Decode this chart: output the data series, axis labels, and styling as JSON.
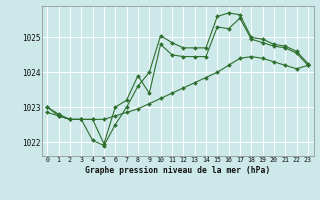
{
  "title": "Graphe pression niveau de la mer (hPa)",
  "bg_color": "#cce8e8",
  "grid_color": "#ffffff",
  "line_color": "#2d6e2d",
  "marker_color": "#2d6e2d",
  "xlim": [
    -0.5,
    23.5
  ],
  "ylim": [
    1021.6,
    1025.9
  ],
  "yticks": [
    1022,
    1023,
    1024,
    1025
  ],
  "xticks": [
    0,
    1,
    2,
    3,
    4,
    5,
    6,
    7,
    8,
    9,
    10,
    11,
    12,
    13,
    14,
    15,
    16,
    17,
    18,
    19,
    20,
    21,
    22,
    23
  ],
  "series": [
    {
      "x": [
        0,
        1,
        2,
        3,
        4,
        5,
        6,
        7,
        8,
        9,
        10,
        11,
        12,
        13,
        14,
        15,
        16,
        17,
        18,
        19,
        20,
        21,
        22,
        23
      ],
      "y": [
        1022.85,
        1022.75,
        1022.65,
        1022.65,
        1022.65,
        1022.65,
        1022.75,
        1022.85,
        1022.95,
        1023.1,
        1023.25,
        1023.4,
        1023.55,
        1023.7,
        1023.85,
        1024.0,
        1024.2,
        1024.4,
        1024.45,
        1024.4,
        1024.3,
        1024.2,
        1024.1,
        1024.2
      ]
    },
    {
      "x": [
        0,
        1,
        2,
        3,
        4,
        5,
        6,
        7,
        8,
        9,
        10,
        11,
        12,
        13,
        14,
        15,
        16,
        17,
        18,
        19,
        20,
        21,
        22,
        23
      ],
      "y": [
        1023.0,
        1022.8,
        1022.65,
        1022.65,
        1022.05,
        1021.9,
        1022.5,
        1023.0,
        1023.6,
        1024.0,
        1025.05,
        1024.85,
        1024.7,
        1024.7,
        1024.7,
        1025.6,
        1025.7,
        1025.65,
        1025.0,
        1024.95,
        1024.8,
        1024.75,
        1024.6,
        1024.25
      ]
    },
    {
      "x": [
        0,
        1,
        2,
        3,
        4,
        5,
        6,
        7,
        8,
        9,
        10,
        11,
        12,
        13,
        14,
        15,
        16,
        17,
        18,
        19,
        20,
        21,
        22,
        23
      ],
      "y": [
        1023.0,
        1022.75,
        1022.65,
        1022.65,
        1022.65,
        1021.95,
        1023.0,
        1023.2,
        1023.9,
        1023.4,
        1024.8,
        1024.5,
        1024.45,
        1024.45,
        1024.45,
        1025.3,
        1025.25,
        1025.55,
        1024.95,
        1024.85,
        1024.75,
        1024.7,
        1024.55,
        1024.2
      ]
    }
  ]
}
